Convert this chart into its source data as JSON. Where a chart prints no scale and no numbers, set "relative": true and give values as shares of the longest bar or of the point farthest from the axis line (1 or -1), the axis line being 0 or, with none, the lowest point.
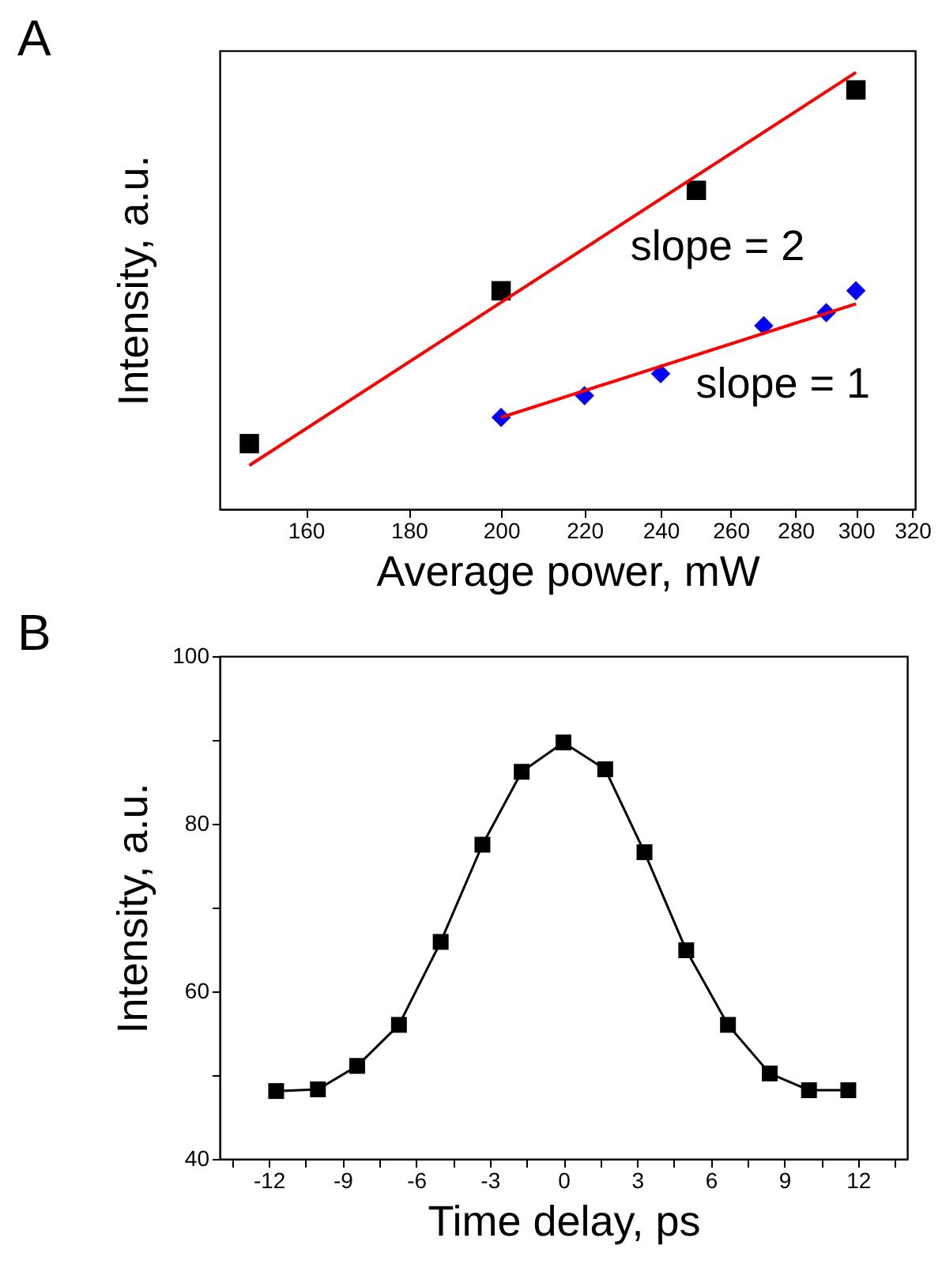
{
  "chart_data": [
    {
      "type": "scatter",
      "title": "A",
      "xlabel": "Average power, mW",
      "ylabel": "Intensity, a.u.",
      "relative": true,
      "log": "x",
      "xlim": [
        145,
        321
      ],
      "xticks": [
        160,
        180,
        200,
        220,
        240,
        260,
        280,
        300,
        320
      ],
      "series": [
        {
          "type": "scatter",
          "marker": "square",
          "color": "#000000",
          "x": [
            150,
            200,
            250,
            300
          ],
          "values": [
            0.15,
            0.5,
            0.73,
            0.96
          ]
        },
        {
          "type": "scatter",
          "marker": "diamond",
          "color": "#0000ff",
          "x": [
            200,
            220,
            240,
            270,
            290,
            300
          ],
          "values": [
            0.21,
            0.26,
            0.31,
            0.42,
            0.45,
            0.5
          ]
        },
        {
          "type": "line",
          "marker": "none",
          "color": "#ff0000",
          "x": [
            150,
            300
          ],
          "values": [
            0.1,
            1.0
          ]
        },
        {
          "type": "line",
          "marker": "none",
          "color": "#ff0000",
          "x": [
            200,
            300
          ],
          "values": [
            0.21,
            0.47
          ]
        }
      ],
      "annotations": [
        "slope = 2",
        "slope = 1"
      ]
    },
    {
      "type": "line",
      "title": "B",
      "xlabel": "Time delay, ps",
      "ylabel": "Intensity, a.u.",
      "marker": "square",
      "line_style": "solid",
      "xlim": [
        -14,
        14
      ],
      "xticks": [
        {
          "value": -13.5,
          "label": null
        },
        -12,
        {
          "value": -10.5,
          "label": null
        },
        -9,
        {
          "value": -7.5,
          "label": null
        },
        -6,
        {
          "value": -4.5,
          "label": null
        },
        -3,
        {
          "value": -1.5,
          "label": null
        },
        0,
        {
          "value": 1.5,
          "label": null
        },
        3,
        {
          "value": 4.5,
          "label": null
        },
        6,
        {
          "value": 7.5,
          "label": null
        },
        9,
        {
          "value": 10.5,
          "label": null
        },
        12,
        {
          "value": 13.5,
          "label": null
        }
      ],
      "ylim": [
        40,
        100
      ],
      "yticks": [
        40,
        {
          "value": 50,
          "label": null
        },
        60,
        {
          "value": 70,
          "label": null
        },
        80,
        {
          "value": 90,
          "label": null
        },
        100
      ],
      "x": [
        -11.7,
        -10,
        -8.4,
        -6.7,
        -5,
        -3.3,
        -1.7,
        0,
        1.7,
        3.3,
        5,
        6.7,
        8.4,
        10,
        11.6
      ],
      "series": [
        {
          "color": "#000000",
          "values": [
            48.1,
            48.3,
            51.1,
            56.0,
            65.9,
            77.5,
            86.2,
            89.7,
            86.5,
            76.6,
            64.9,
            56.0,
            50.2,
            48.2,
            48.2
          ]
        }
      ]
    }
  ]
}
